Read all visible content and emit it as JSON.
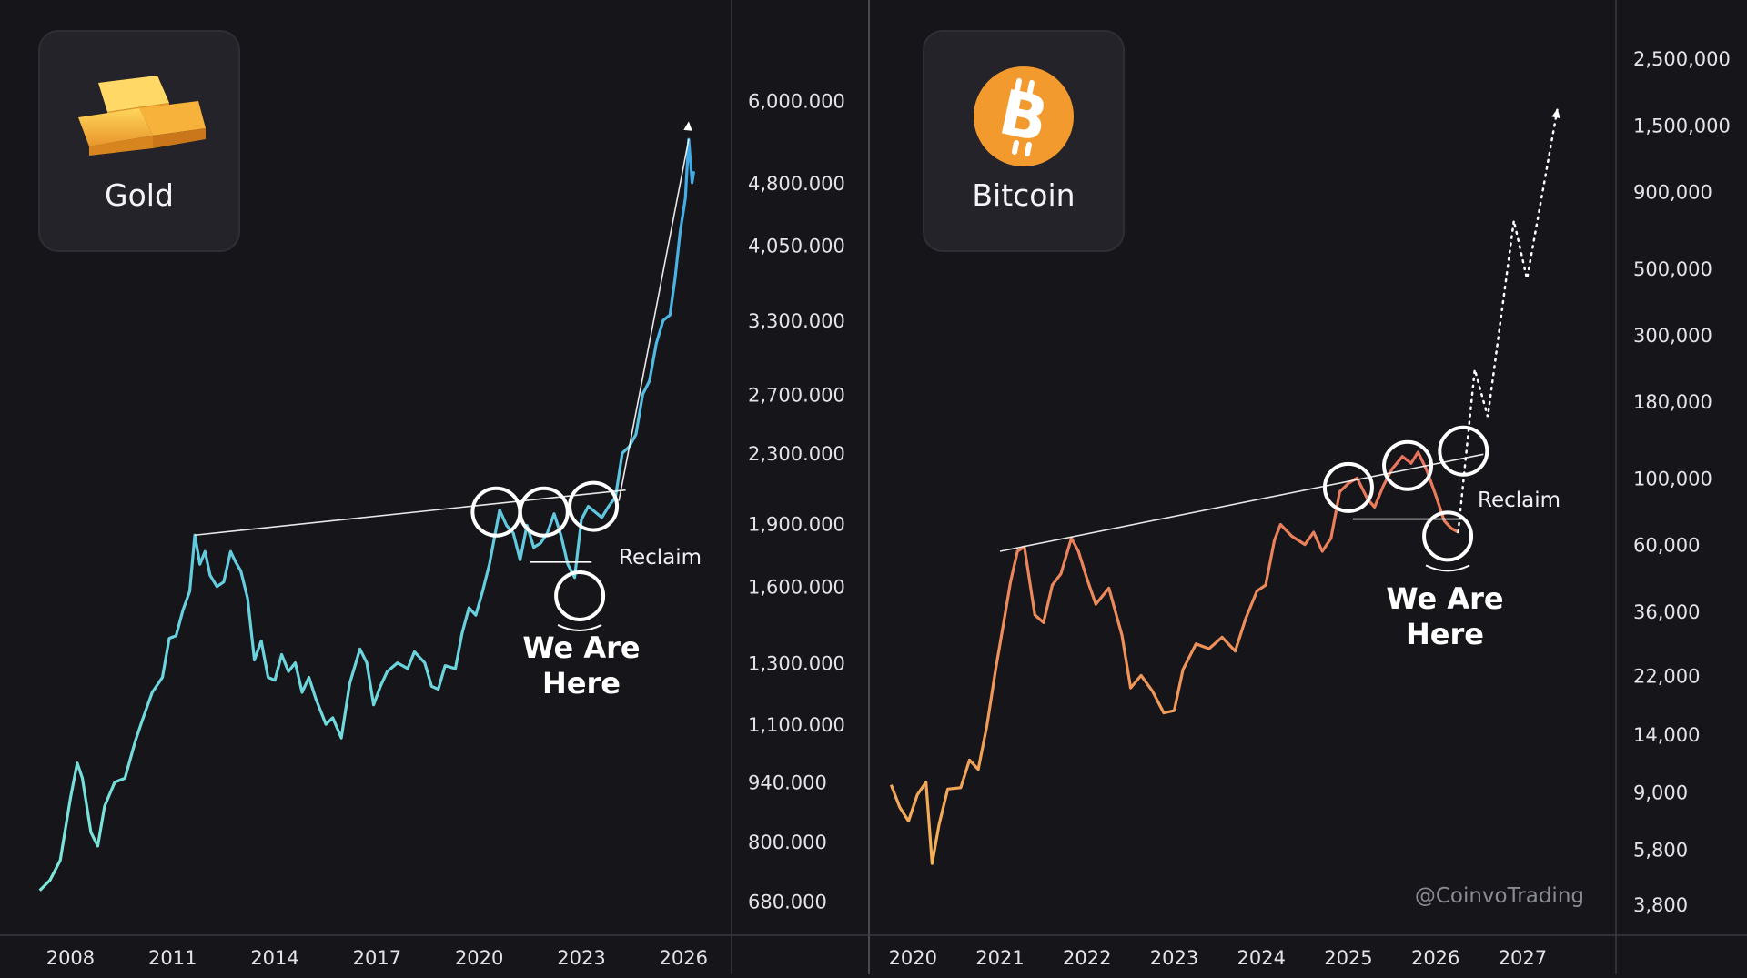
{
  "colors": {
    "background": "#15151a",
    "panel_card": "#232329",
    "gold_line_start": "#7fe8d8",
    "gold_line_end": "#3fa7e6",
    "btc_line_start": "#f5b257",
    "btc_line_end": "#e8735c",
    "bitcoin_orange": "#f39a2e",
    "gold_bar": "#f6b23b"
  },
  "gold_card": {
    "title": "Gold",
    "icon": "gold-bars-icon"
  },
  "bitcoin_card": {
    "title": "Bitcoin",
    "icon": "bitcoin-icon"
  },
  "annotations": {
    "gold_here_line1": "We Are",
    "gold_here_line2": "Here",
    "gold_reclaim": "Reclaim",
    "btc_here_line1": "We Are",
    "btc_here_line2": "Here",
    "btc_reclaim": "Reclaim",
    "watermark": "@CoinvoTrading"
  },
  "chart_data": [
    {
      "type": "line",
      "name": "gold",
      "y_scale": "log",
      "y_ticks": [
        "6,000.000",
        "4,800.000",
        "4,050.000",
        "3,300.000",
        "2,700.000",
        "2,300.000",
        "1,900.000",
        "1,600.000",
        "1,300.000",
        "1,100.000",
        "940.000",
        "800.000",
        "680.000"
      ],
      "x_ticks": [
        "2008",
        "2011",
        "2014",
        "2017",
        "2020",
        "2023",
        "2026"
      ],
      "x_range": [
        2007.0,
        2026.5
      ],
      "ylim": [
        640,
        6800
      ],
      "series": [
        {
          "values": [
            [
              2007.1,
              700
            ],
            [
              2007.4,
              720
            ],
            [
              2007.7,
              760
            ],
            [
              2008.0,
              900
            ],
            [
              2008.2,
              990
            ],
            [
              2008.35,
              950
            ],
            [
              2008.6,
              820
            ],
            [
              2008.8,
              790
            ],
            [
              2009.0,
              880
            ],
            [
              2009.3,
              940
            ],
            [
              2009.6,
              950
            ],
            [
              2009.9,
              1050
            ],
            [
              2010.1,
              1110
            ],
            [
              2010.4,
              1200
            ],
            [
              2010.7,
              1250
            ],
            [
              2010.9,
              1390
            ],
            [
              2011.1,
              1400
            ],
            [
              2011.3,
              1500
            ],
            [
              2011.5,
              1580
            ],
            [
              2011.65,
              1840
            ],
            [
              2011.8,
              1700
            ],
            [
              2011.95,
              1760
            ],
            [
              2012.1,
              1650
            ],
            [
              2012.3,
              1600
            ],
            [
              2012.5,
              1620
            ],
            [
              2012.7,
              1760
            ],
            [
              2012.85,
              1710
            ],
            [
              2013.0,
              1670
            ],
            [
              2013.2,
              1550
            ],
            [
              2013.4,
              1310
            ],
            [
              2013.6,
              1380
            ],
            [
              2013.8,
              1250
            ],
            [
              2014.0,
              1240
            ],
            [
              2014.2,
              1330
            ],
            [
              2014.4,
              1270
            ],
            [
              2014.6,
              1300
            ],
            [
              2014.8,
              1200
            ],
            [
              2015.0,
              1250
            ],
            [
              2015.2,
              1180
            ],
            [
              2015.5,
              1100
            ],
            [
              2015.7,
              1120
            ],
            [
              2015.95,
              1060
            ],
            [
              2016.2,
              1230
            ],
            [
              2016.5,
              1350
            ],
            [
              2016.7,
              1300
            ],
            [
              2016.9,
              1160
            ],
            [
              2017.1,
              1220
            ],
            [
              2017.3,
              1270
            ],
            [
              2017.6,
              1300
            ],
            [
              2017.9,
              1280
            ],
            [
              2018.1,
              1340
            ],
            [
              2018.4,
              1300
            ],
            [
              2018.6,
              1220
            ],
            [
              2018.8,
              1210
            ],
            [
              2019.0,
              1290
            ],
            [
              2019.3,
              1280
            ],
            [
              2019.5,
              1410
            ],
            [
              2019.7,
              1510
            ],
            [
              2019.9,
              1480
            ],
            [
              2020.1,
              1580
            ],
            [
              2020.3,
              1700
            ],
            [
              2020.6,
              1970
            ],
            [
              2020.8,
              1890
            ],
            [
              2021.0,
              1850
            ],
            [
              2021.2,
              1720
            ],
            [
              2021.4,
              1890
            ],
            [
              2021.6,
              1780
            ],
            [
              2021.8,
              1800
            ],
            [
              2022.0,
              1850
            ],
            [
              2022.2,
              1950
            ],
            [
              2022.4,
              1840
            ],
            [
              2022.6,
              1700
            ],
            [
              2022.8,
              1640
            ],
            [
              2023.0,
              1920
            ],
            [
              2023.2,
              1990
            ],
            [
              2023.4,
              1960
            ],
            [
              2023.6,
              1930
            ],
            [
              2023.8,
              1990
            ],
            [
              2024.0,
              2040
            ],
            [
              2024.2,
              2300
            ],
            [
              2024.4,
              2340
            ],
            [
              2024.6,
              2420
            ],
            [
              2024.8,
              2700
            ],
            [
              2025.0,
              2800
            ],
            [
              2025.2,
              3100
            ],
            [
              2025.4,
              3300
            ],
            [
              2025.6,
              3350
            ],
            [
              2025.75,
              3700
            ],
            [
              2025.9,
              4200
            ],
            [
              2026.05,
              4600
            ],
            [
              2026.15,
              5400
            ],
            [
              2026.25,
              4800
            ],
            [
              2026.3,
              4950
            ]
          ]
        }
      ]
    },
    {
      "type": "line",
      "name": "bitcoin",
      "y_scale": "log",
      "y_ticks": [
        "2,500,000",
        "1,500,000",
        "900,000",
        "500,000",
        "300,000",
        "180,000",
        "100,000",
        "60,000",
        "36,000",
        "22,000",
        "14,000",
        "9,000",
        "5,800",
        "3,800"
      ],
      "x_ticks": [
        "2020",
        "2021",
        "2022",
        "2023",
        "2024",
        "2025",
        "2026",
        "2027"
      ],
      "x_range": [
        2019.6,
        2027.8
      ],
      "ylim": [
        3400,
        3000000
      ],
      "series": [
        {
          "values": [
            [
              2019.75,
              9500
            ],
            [
              2019.85,
              8000
            ],
            [
              2019.95,
              7200
            ],
            [
              2020.05,
              8800
            ],
            [
              2020.15,
              9700
            ],
            [
              2020.22,
              5200
            ],
            [
              2020.3,
              7000
            ],
            [
              2020.4,
              9200
            ],
            [
              2020.55,
              9300
            ],
            [
              2020.65,
              11500
            ],
            [
              2020.75,
              10700
            ],
            [
              2020.85,
              15000
            ],
            [
              2020.95,
              23000
            ],
            [
              2021.05,
              34000
            ],
            [
              2021.12,
              45000
            ],
            [
              2021.2,
              57000
            ],
            [
              2021.28,
              59000
            ],
            [
              2021.4,
              35000
            ],
            [
              2021.5,
              33000
            ],
            [
              2021.6,
              44000
            ],
            [
              2021.7,
              48000
            ],
            [
              2021.82,
              63000
            ],
            [
              2021.9,
              57000
            ],
            [
              2022.0,
              46000
            ],
            [
              2022.1,
              38000
            ],
            [
              2022.25,
              43000
            ],
            [
              2022.4,
              30000
            ],
            [
              2022.5,
              20000
            ],
            [
              2022.62,
              22000
            ],
            [
              2022.75,
              19500
            ],
            [
              2022.88,
              16500
            ],
            [
              2023.0,
              16800
            ],
            [
              2023.1,
              23000
            ],
            [
              2023.25,
              28000
            ],
            [
              2023.4,
              27000
            ],
            [
              2023.55,
              29500
            ],
            [
              2023.7,
              26500
            ],
            [
              2023.82,
              34000
            ],
            [
              2023.95,
              42000
            ],
            [
              2024.05,
              44000
            ],
            [
              2024.15,
              62000
            ],
            [
              2024.22,
              70000
            ],
            [
              2024.35,
              64000
            ],
            [
              2024.5,
              60000
            ],
            [
              2024.6,
              66000
            ],
            [
              2024.7,
              57000
            ],
            [
              2024.8,
              63000
            ],
            [
              2024.9,
              90000
            ],
            [
              2025.0,
              96000
            ],
            [
              2025.1,
              100000
            ],
            [
              2025.22,
              85000
            ],
            [
              2025.3,
              80000
            ],
            [
              2025.4,
              94000
            ],
            [
              2025.5,
              107000
            ],
            [
              2025.62,
              118000
            ],
            [
              2025.72,
              112000
            ],
            [
              2025.8,
              122000
            ],
            [
              2025.9,
              106000
            ],
            [
              2026.0,
              88000
            ],
            [
              2026.1,
              72000
            ],
            [
              2026.18,
              68000
            ],
            [
              2026.26,
              66000
            ]
          ]
        },
        {
          "name": "projection",
          "values": [
            [
              2026.26,
              66000
            ],
            [
              2026.45,
              230000
            ],
            [
              2026.6,
              160000
            ],
            [
              2026.9,
              720000
            ],
            [
              2027.05,
              460000
            ],
            [
              2027.4,
              1700000
            ]
          ]
        }
      ]
    }
  ]
}
